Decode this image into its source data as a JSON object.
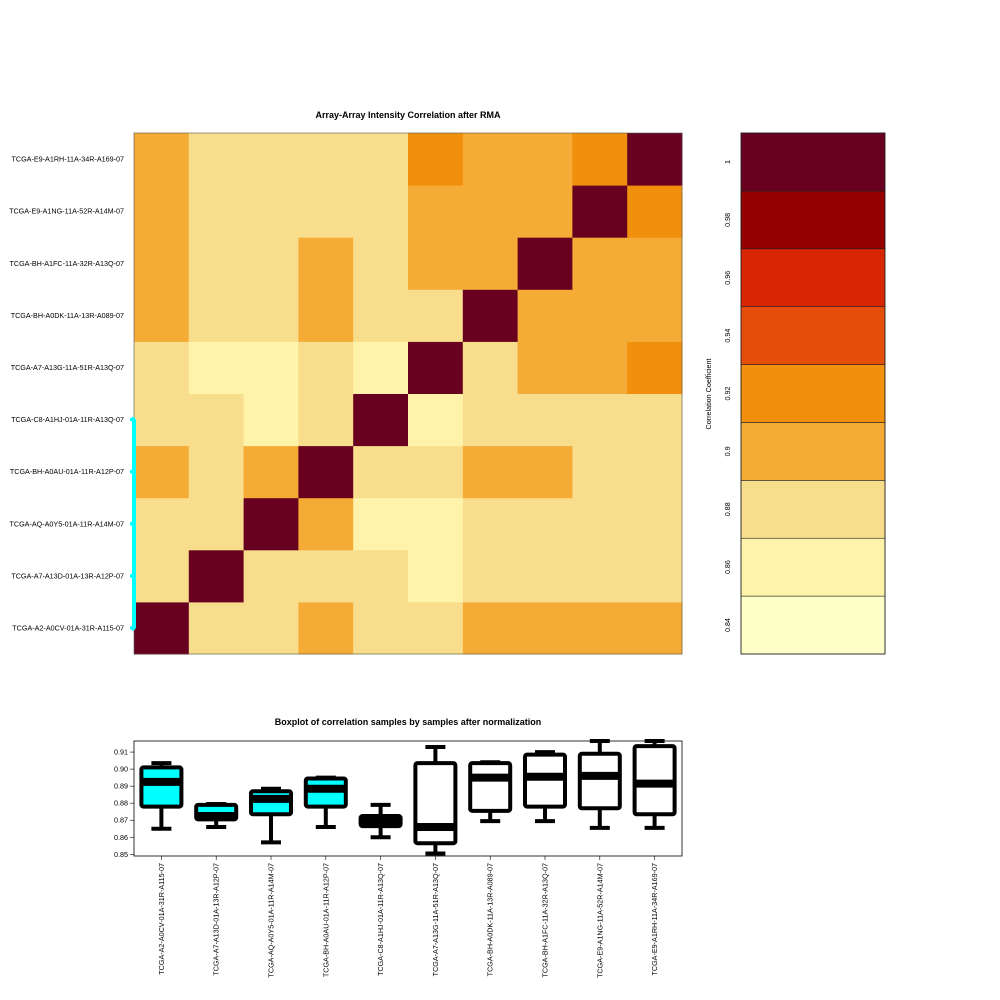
{
  "chart_data": [
    {
      "type": "heatmap",
      "title": "Array-Array Intensity Correlation after RMA",
      "samples": [
        "TCGA-A2-A0CV-01A-31R-A115-07",
        "TCGA-A7-A13D-01A-13R-A12P-07",
        "TCGA-AQ-A0Y5-01A-11R-A14M-07",
        "TCGA-BH-A0AU-01A-11R-A12P-07",
        "TCGA-C8-A1HJ-01A-11R-A13Q-07",
        "TCGA-A7-A13G-11A-51R-A13Q-07",
        "TCGA-BH-A0DK-11A-13R-A089-07",
        "TCGA-BH-A1FC-11A-32R-A13Q-07",
        "TCGA-E9-A1NG-11A-52R-A14M-07",
        "TCGA-E9-A1RH-11A-34R-A169-07"
      ],
      "grouped_samples": [
        0,
        1,
        2,
        3,
        4
      ],
      "group_color": "#00ffff",
      "matrix": [
        [
          1.0,
          0.88,
          0.88,
          0.89,
          0.87,
          0.87,
          0.9,
          0.9,
          0.89,
          0.89
        ],
        [
          0.88,
          1.0,
          0.88,
          0.88,
          0.88,
          0.85,
          0.87,
          0.87,
          0.87,
          0.87
        ],
        [
          0.88,
          0.88,
          1.0,
          0.89,
          0.86,
          0.86,
          0.88,
          0.88,
          0.88,
          0.87
        ],
        [
          0.89,
          0.88,
          0.89,
          1.0,
          0.87,
          0.87,
          0.89,
          0.89,
          0.88,
          0.88
        ],
        [
          0.87,
          0.88,
          0.86,
          0.87,
          1.0,
          0.86,
          0.87,
          0.87,
          0.87,
          0.87
        ],
        [
          0.87,
          0.86,
          0.86,
          0.87,
          0.86,
          1.0,
          0.87,
          0.89,
          0.9,
          0.91
        ],
        [
          0.9,
          0.87,
          0.88,
          0.89,
          0.87,
          0.87,
          1.0,
          0.9,
          0.89,
          0.89
        ],
        [
          0.9,
          0.87,
          0.88,
          0.89,
          0.87,
          0.89,
          0.9,
          1.0,
          0.9,
          0.9
        ],
        [
          0.89,
          0.87,
          0.88,
          0.88,
          0.87,
          0.9,
          0.89,
          0.9,
          1.0,
          0.91
        ],
        [
          0.89,
          0.87,
          0.87,
          0.88,
          0.87,
          0.91,
          0.89,
          0.9,
          0.91,
          1.0
        ]
      ],
      "color_scale": {
        "label": "Correlation Coefficient",
        "breaks": [
          0.83,
          0.85,
          0.87,
          0.89,
          0.91,
          0.93,
          0.95,
          0.97,
          0.99,
          1.01
        ],
        "colors": [
          "#ffffc8",
          "#fff3aa",
          "#f8de8c",
          "#f4ac36",
          "#f0900c",
          "#e54d0a",
          "#d82603",
          "#920000",
          "#680020"
        ],
        "ticks": [
          0.84,
          0.86,
          0.88,
          0.9,
          0.92,
          0.94,
          0.96,
          0.98,
          1
        ],
        "tick_labels": [
          "0.84",
          "0.86",
          "0.88",
          "0.9",
          "0.92",
          "0.94",
          "0.96",
          "0.98",
          "1"
        ]
      }
    },
    {
      "type": "boxplot",
      "title": "Boxplot of correlation samples by samples after normalization",
      "ylim": [
        0.849,
        0.9165
      ],
      "yticks": [
        0.85,
        0.86,
        0.87,
        0.88,
        0.89,
        0.9,
        0.91
      ],
      "ytick_labels": [
        "0.85",
        "0.86",
        "0.87",
        "0.88",
        "0.89",
        "0.90",
        "0.91"
      ],
      "categories": [
        "TCGA-A2-A0CV-01A-31R-A115-07",
        "TCGA-A7-A13D-01A-13R-A12P-07",
        "TCGA-AQ-A0Y5-01A-11R-A14M-07",
        "TCGA-BH-A0AU-01A-11R-A12P-07",
        "TCGA-C8-A1HJ-01A-11R-A13Q-07",
        "TCGA-A7-A13G-11A-51R-A13Q-07",
        "TCGA-BH-A0DK-11A-13R-A089-07",
        "TCGA-BH-A1FC-11A-32R-A13Q-07",
        "TCGA-E9-A1NG-11A-52R-A14M-07",
        "TCGA-E9-A1RH-11A-34R-A169-07"
      ],
      "fills": [
        "#00ffff",
        "#00ffff",
        "#00ffff",
        "#00ffff",
        "#00ffff",
        "#ffffff",
        "#ffffff",
        "#ffffff",
        "#ffffff",
        "#ffffff"
      ],
      "stats": [
        {
          "min": 0.865,
          "q1": 0.878,
          "median": 0.8925,
          "q3": 0.901,
          "max": 0.9035
        },
        {
          "min": 0.866,
          "q1": 0.8705,
          "median": 0.8725,
          "q3": 0.879,
          "max": 0.8795
        },
        {
          "min": 0.857,
          "q1": 0.8735,
          "median": 0.8825,
          "q3": 0.887,
          "max": 0.8885
        },
        {
          "min": 0.866,
          "q1": 0.878,
          "median": 0.8885,
          "q3": 0.8945,
          "max": 0.895
        },
        {
          "min": 0.86,
          "q1": 0.8665,
          "median": 0.8695,
          "q3": 0.8725,
          "max": 0.879
        },
        {
          "min": 0.8505,
          "q1": 0.8565,
          "median": 0.866,
          "q3": 0.9035,
          "max": 0.913
        },
        {
          "min": 0.8695,
          "q1": 0.8755,
          "median": 0.895,
          "q3": 0.9035,
          "max": 0.904
        },
        {
          "min": 0.8695,
          "q1": 0.878,
          "median": 0.8955,
          "q3": 0.9085,
          "max": 0.91
        },
        {
          "min": 0.8655,
          "q1": 0.877,
          "median": 0.896,
          "q3": 0.909,
          "max": 0.9165
        },
        {
          "min": 0.8655,
          "q1": 0.8735,
          "median": 0.8915,
          "q3": 0.9135,
          "max": 0.9165
        }
      ]
    }
  ]
}
